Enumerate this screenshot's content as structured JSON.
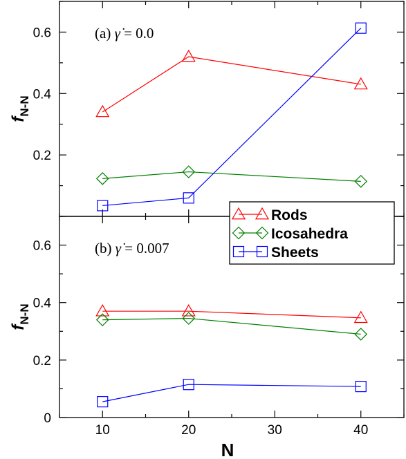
{
  "chart_data": [
    {
      "type": "line",
      "annotation": "(a) γ̇ = 0.0",
      "annotation_prefix": "(a)",
      "annotation_symbol": "γ̇",
      "annotation_value": "= 0.0",
      "xlabel": "N",
      "ylabel": "f",
      "ylabel_sub": "N-N",
      "x": [
        10,
        20,
        40
      ],
      "xlim": [
        5,
        45
      ],
      "ylim": [
        0,
        0.7
      ],
      "yticks": [
        0.2,
        0.4,
        0.6
      ],
      "ytick_labels": [
        "0.2",
        "0.4",
        "0.6"
      ],
      "grid": false,
      "series": [
        {
          "name": "Rods",
          "marker": "triangle",
          "color": "#ff0000",
          "values": [
            0.34,
            0.52,
            0.43
          ]
        },
        {
          "name": "Icosahedra",
          "marker": "diamond",
          "color": "#008000",
          "values": [
            0.123,
            0.145,
            0.114
          ]
        },
        {
          "name": "Sheets",
          "marker": "square",
          "color": "#0000ff",
          "values": [
            0.035,
            0.06,
            0.613
          ]
        }
      ]
    },
    {
      "type": "line",
      "annotation": "(b) γ̇ = 0.007",
      "annotation_prefix": "(b)",
      "annotation_symbol": "γ̇",
      "annotation_value": "= 0.007",
      "xlabel": "N",
      "ylabel": "f",
      "ylabel_sub": "N-N",
      "x": [
        10,
        20,
        40
      ],
      "xlim": [
        5,
        45
      ],
      "xticks": [
        10,
        20,
        30,
        40
      ],
      "xtick_labels": [
        "10",
        "20",
        "30",
        "40"
      ],
      "ylim": [
        0,
        0.7
      ],
      "yticks": [
        0,
        0.2,
        0.4,
        0.6
      ],
      "ytick_labels": [
        "0",
        "0.2",
        "0.4",
        "0.6"
      ],
      "grid": false,
      "series": [
        {
          "name": "Rods",
          "marker": "triangle",
          "color": "#ff0000",
          "values": [
            0.37,
            0.37,
            0.347
          ]
        },
        {
          "name": "Icosahedra",
          "marker": "diamond",
          "color": "#008000",
          "values": [
            0.34,
            0.345,
            0.29
          ]
        },
        {
          "name": "Sheets",
          "marker": "square",
          "color": "#0000ff",
          "values": [
            0.055,
            0.115,
            0.108
          ]
        }
      ]
    }
  ],
  "legend": {
    "placement": "center-right",
    "items": [
      {
        "label": "Rods",
        "marker": "triangle",
        "color": "#ff0000"
      },
      {
        "label": "Icosahedra",
        "marker": "diamond",
        "color": "#008000"
      },
      {
        "label": "Sheets",
        "marker": "square",
        "color": "#0000ff"
      }
    ]
  }
}
